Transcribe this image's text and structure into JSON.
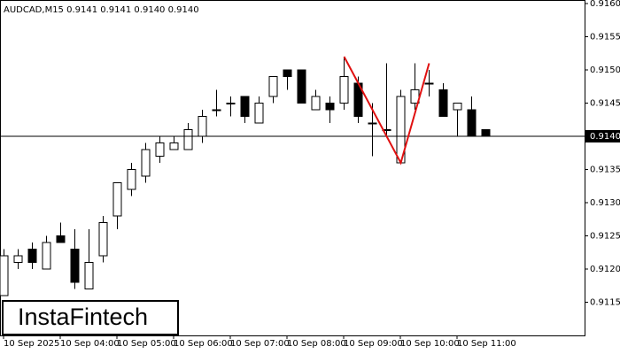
{
  "chart_data": {
    "type": "candlestick",
    "title": "AUDCAD,M15  0.9141 0.9141 0.9140 0.9140",
    "watermark": "InstaFintech",
    "categories": [
      "10 Sep 2025",
      null,
      null,
      null,
      "10 Sep 04:00",
      null,
      null,
      null,
      "10 Sep 05:00",
      null,
      null,
      null,
      "10 Sep 06:00",
      null,
      null,
      null,
      "10 Sep 07:00",
      null,
      null,
      null,
      "10 Sep 08:00",
      null,
      null,
      null,
      "10 Sep 09:00",
      null,
      null,
      null,
      "10 Sep 10:00",
      null,
      null,
      null,
      "10 Sep 11:00",
      null,
      null
    ],
    "open": [
      0.9116,
      0.9121,
      0.9123,
      0.912,
      0.9125,
      0.9123,
      0.9117,
      0.9122,
      0.9128,
      0.9132,
      0.9134,
      0.9137,
      0.9138,
      0.9138,
      0.914,
      0.9144,
      0.9145,
      0.9146,
      0.9142,
      0.9146,
      0.915,
      0.915,
      0.9144,
      0.9145,
      0.9145,
      0.9148,
      0.9142,
      0.9141,
      0.9136,
      0.9145,
      0.9148,
      0.9147,
      0.9144,
      0.9144,
      0.9141
    ],
    "high": [
      0.9123,
      0.9123,
      0.9124,
      0.9125,
      0.9127,
      0.9126,
      0.9126,
      0.9128,
      0.9133,
      0.9136,
      0.9139,
      0.914,
      0.914,
      0.9142,
      0.9144,
      0.9147,
      0.9146,
      0.9146,
      0.9146,
      0.9149,
      0.915,
      0.915,
      0.9147,
      0.9146,
      0.9152,
      0.9149,
      0.9145,
      0.9151,
      0.9147,
      0.9151,
      0.915,
      0.9148,
      0.9145,
      0.9146,
      0.9141
    ],
    "low": [
      0.9116,
      0.912,
      0.912,
      0.912,
      0.9124,
      0.9117,
      0.9117,
      0.9121,
      0.9126,
      0.9131,
      0.9133,
      0.9136,
      0.9138,
      0.9138,
      0.9139,
      0.9143,
      0.9143,
      0.9142,
      0.9142,
      0.9145,
      0.9147,
      0.9145,
      0.9144,
      0.9142,
      0.9144,
      0.9142,
      0.9137,
      0.914,
      0.9136,
      0.9144,
      0.9146,
      0.9143,
      0.914,
      0.914,
      0.914
    ],
    "close": [
      0.9122,
      0.9122,
      0.9121,
      0.9124,
      0.9124,
      0.9118,
      0.9121,
      0.9127,
      0.9133,
      0.9135,
      0.9138,
      0.9139,
      0.9139,
      0.9141,
      0.9143,
      0.9144,
      0.9145,
      0.9143,
      0.9145,
      0.9149,
      0.9149,
      0.9145,
      0.9146,
      0.9144,
      0.9149,
      0.9143,
      0.9142,
      0.9141,
      0.9146,
      0.9147,
      0.9148,
      0.9143,
      0.9145,
      0.914,
      0.914
    ],
    "up_color": "#ffffff",
    "down_color": "#000000",
    "pattern": {
      "color": "#e01010",
      "points": [
        {
          "index": 24,
          "value": 0.9152
        },
        {
          "index": 28,
          "value": 0.9136
        },
        {
          "index": 30,
          "value": 0.9151
        }
      ]
    },
    "price_line": {
      "value": 0.914,
      "label": "0.9140"
    },
    "ylim": [
      0.911,
      0.916
    ],
    "yticks": [
      {
        "value": 0.9115,
        "label": "0.9115"
      },
      {
        "value": 0.912,
        "label": "0.9120"
      },
      {
        "value": 0.9125,
        "label": "0.9125"
      },
      {
        "value": 0.913,
        "label": "0.9130"
      },
      {
        "value": 0.9135,
        "label": "0.9135"
      },
      {
        "value": 0.914,
        "label": "0.9140"
      },
      {
        "value": 0.9145,
        "label": "0.9145"
      },
      {
        "value": 0.915,
        "label": "0.9150"
      },
      {
        "value": 0.9155,
        "label": "0.9155"
      },
      {
        "value": 0.916,
        "label": "0.9160"
      }
    ]
  }
}
